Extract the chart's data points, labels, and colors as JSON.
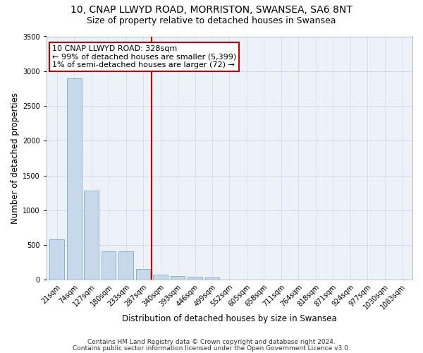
{
  "title1": "10, CNAP LLWYD ROAD, MORRISTON, SWANSEA, SA6 8NT",
  "title2": "Size of property relative to detached houses in Swansea",
  "xlabel": "Distribution of detached houses by size in Swansea",
  "ylabel": "Number of detached properties",
  "bar_labels": [
    "21sqm",
    "74sqm",
    "127sqm",
    "180sqm",
    "233sqm",
    "287sqm",
    "340sqm",
    "393sqm",
    "446sqm",
    "499sqm",
    "552sqm",
    "605sqm",
    "658sqm",
    "711sqm",
    "764sqm",
    "818sqm",
    "871sqm",
    "924sqm",
    "977sqm",
    "1030sqm",
    "1083sqm"
  ],
  "bar_values": [
    580,
    2900,
    1280,
    410,
    410,
    160,
    75,
    55,
    40,
    30,
    0,
    0,
    0,
    0,
    0,
    0,
    0,
    0,
    0,
    0,
    0
  ],
  "bar_color": "#c8d8eb",
  "bar_edge_color": "#7aaac8",
  "vline_x": 5.5,
  "vline_color": "#cc0000",
  "ann_line1": "10 CNAP LLWYD ROAD: 328sqm",
  "ann_line2": "← 99% of detached houses are smaller (5,399)",
  "ann_line3": "1% of semi-detached houses are larger (72) →",
  "annotation_box_color": "#cc0000",
  "ylim": [
    0,
    3500
  ],
  "yticks": [
    0,
    500,
    1000,
    1500,
    2000,
    2500,
    3000,
    3500
  ],
  "grid_color": "#d0daec",
  "bg_color": "#edf2f8",
  "footer1": "Contains HM Land Registry data © Crown copyright and database right 2024.",
  "footer2": "Contains public sector information licensed under the Open Government Licence v3.0.",
  "title1_fontsize": 10,
  "title2_fontsize": 9,
  "xlabel_fontsize": 8.5,
  "ylabel_fontsize": 8.5,
  "tick_fontsize": 7,
  "ann_fontsize": 8,
  "footer_fontsize": 6.5
}
